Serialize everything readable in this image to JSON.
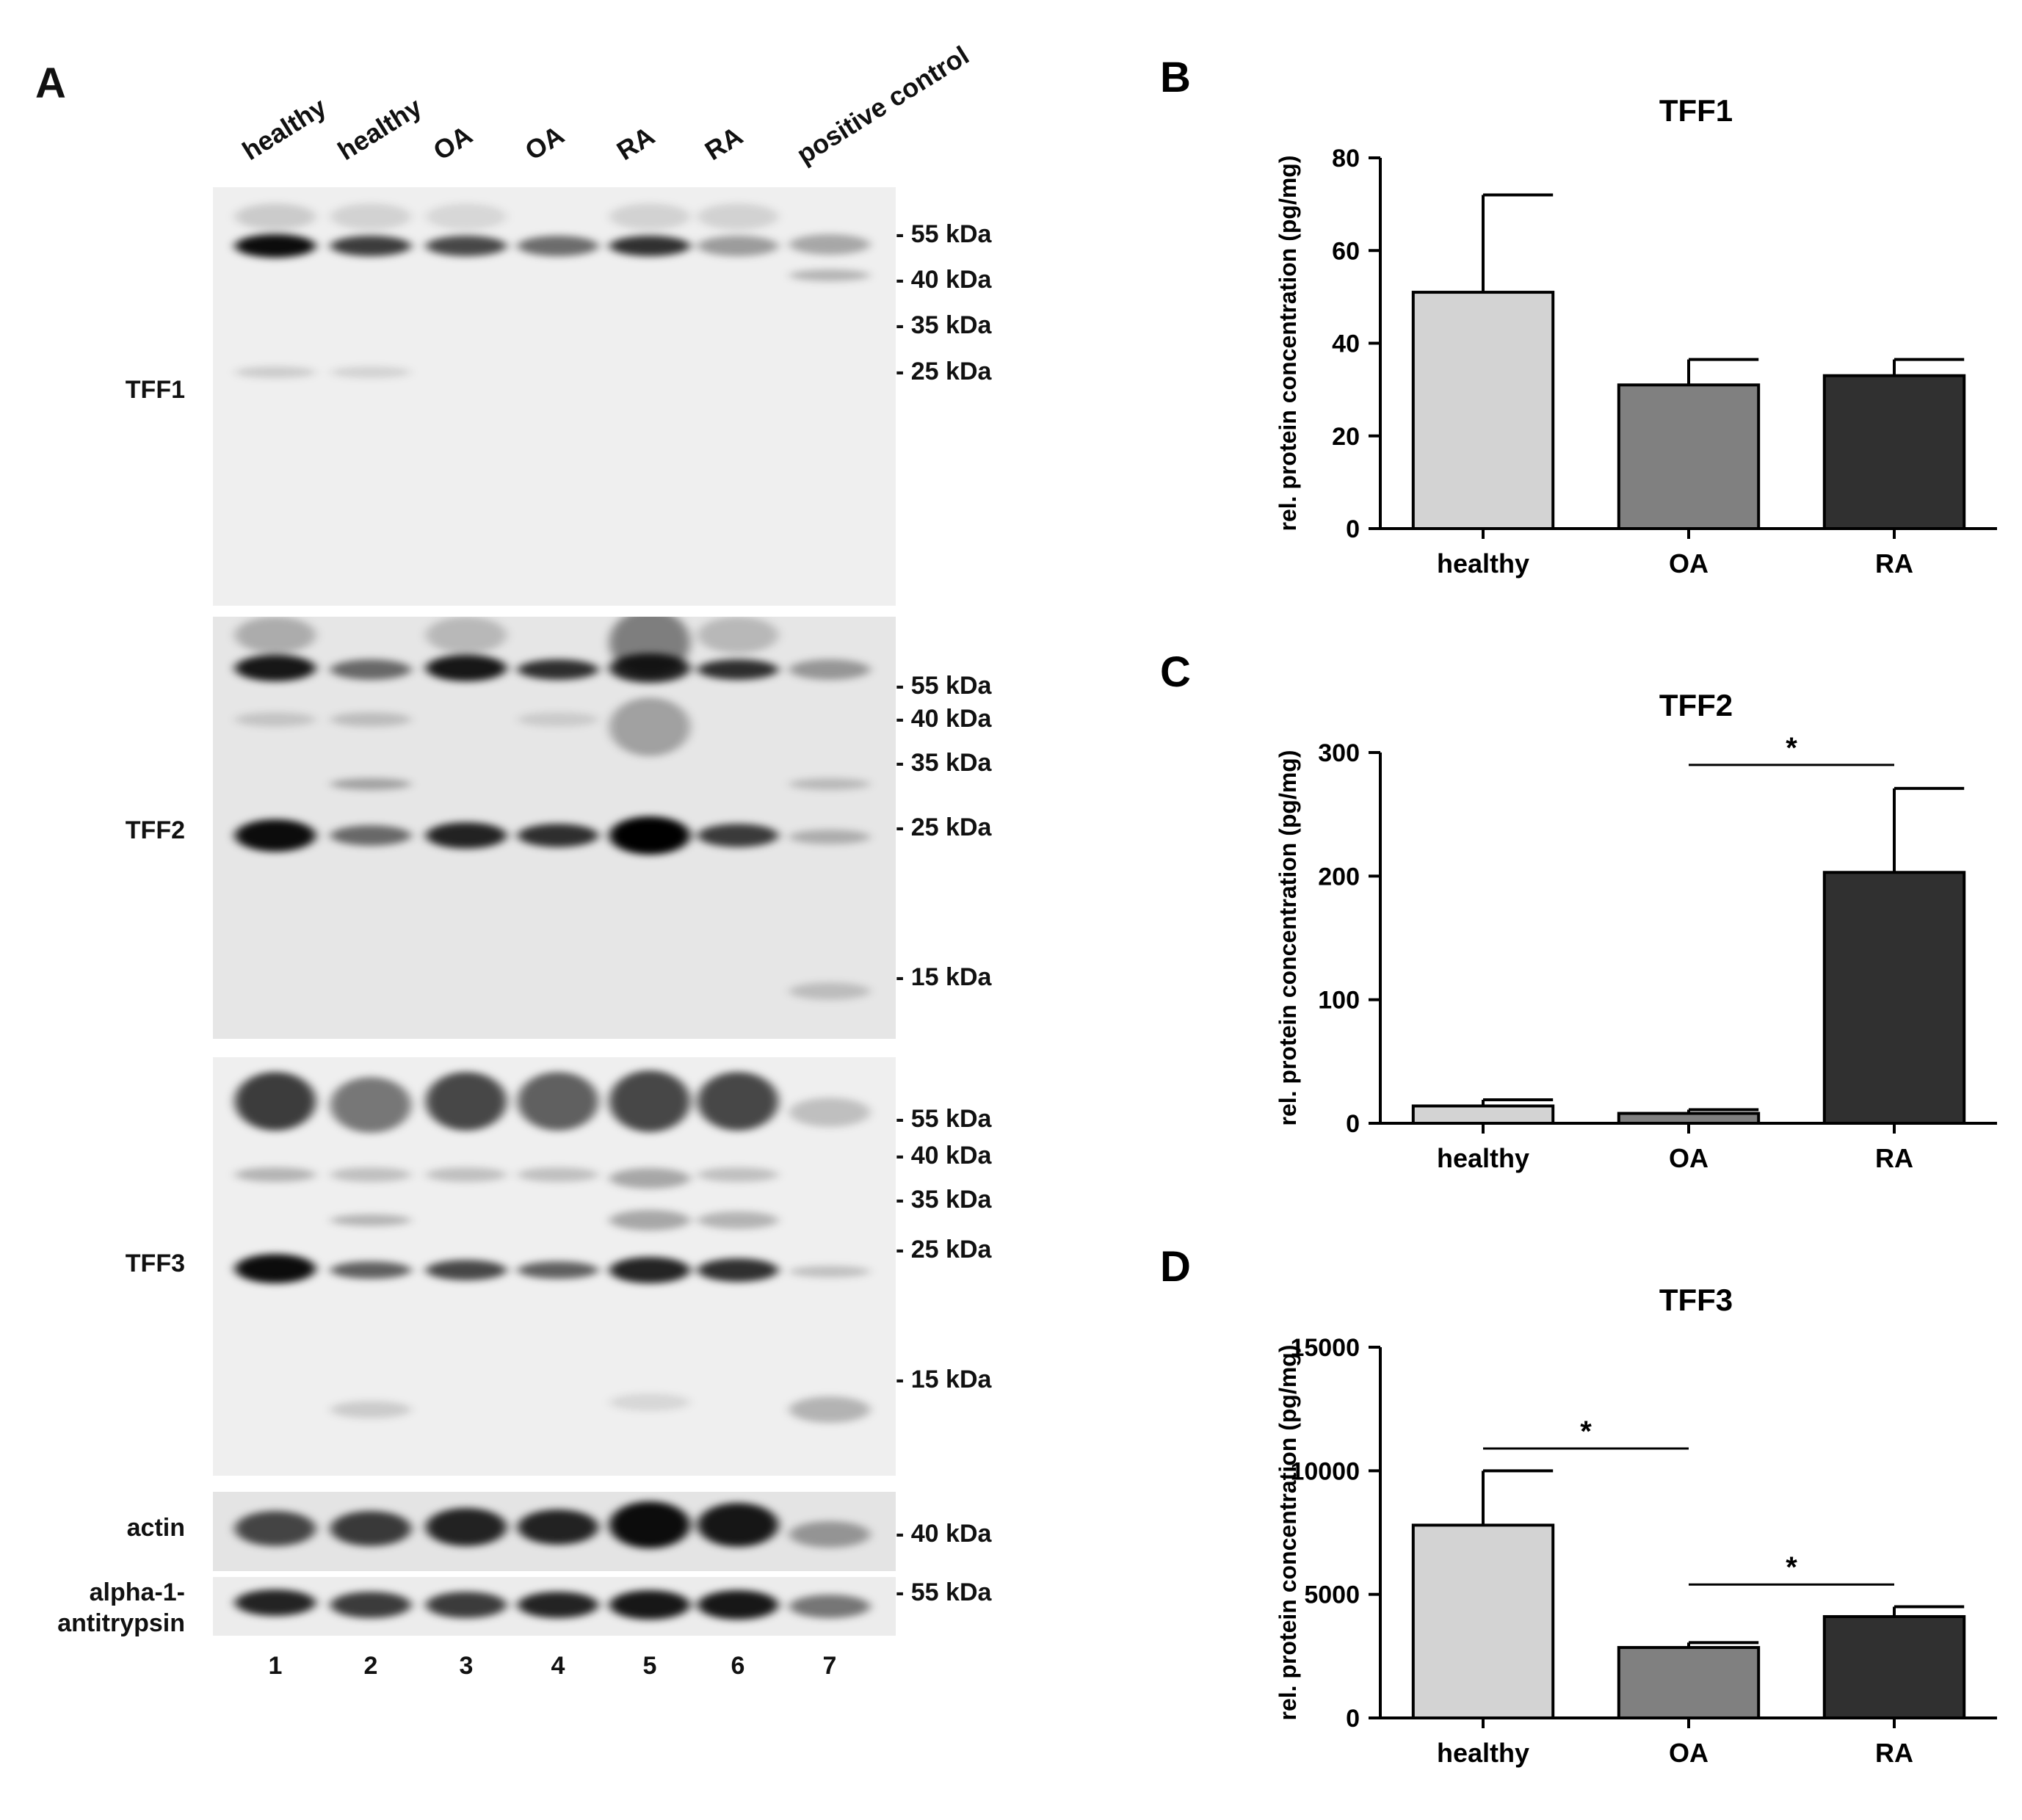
{
  "panel_a": {
    "letter": "A",
    "lanes": [
      {
        "label": "healthy",
        "number": "1"
      },
      {
        "label": "healthy",
        "number": "2"
      },
      {
        "label": "OA",
        "number": "3"
      },
      {
        "label": "OA",
        "number": "4"
      },
      {
        "label": "RA",
        "number": "5"
      },
      {
        "label": "RA",
        "number": "6"
      },
      {
        "label": "positive control",
        "number": "7"
      }
    ],
    "blots": [
      {
        "label": "TFF1",
        "markers": [
          "- 55 kDa",
          "- 40 kDa",
          "- 35 kDa",
          "- 25 kDa"
        ]
      },
      {
        "label": "TFF2",
        "markers": [
          "- 55 kDa",
          "- 40 kDa",
          "- 35 kDa",
          "- 25 kDa",
          "- 15 kDa"
        ]
      },
      {
        "label": "TFF3",
        "markers": [
          "- 55 kDa",
          "- 40 kDa",
          "- 35 kDa",
          "- 25 kDa",
          "- 15 kDa"
        ]
      },
      {
        "label": "actin",
        "markers": [
          "- 40 kDa"
        ]
      },
      {
        "label": "alpha-1-\nantitrypsin",
        "markers": [
          "- 55 kDa"
        ]
      }
    ]
  },
  "chart_data": [
    {
      "panel": "B",
      "type": "bar",
      "title": "TFF1",
      "ylabel": "rel. protein concentration (pg/mg)",
      "categories": [
        "healthy",
        "OA",
        "RA"
      ],
      "values": [
        51,
        31,
        33
      ],
      "errors": [
        21,
        5.5,
        3.5
      ],
      "ylim": [
        0,
        80
      ],
      "yticks": [
        "0",
        "20",
        "40",
        "60",
        "80"
      ],
      "bar_colors": [
        "#d3d3d3",
        "#808080",
        "#303030"
      ],
      "significance": []
    },
    {
      "panel": "C",
      "type": "bar",
      "title": "TFF2",
      "ylabel": "rel. protein concentration (pg/mg)",
      "categories": [
        "healthy",
        "OA",
        "RA"
      ],
      "values": [
        14,
        8,
        203
      ],
      "errors": [
        5,
        3,
        68
      ],
      "ylim": [
        0,
        300
      ],
      "yticks": [
        "0",
        "100",
        "200",
        "300"
      ],
      "bar_colors": [
        "#d3d3d3",
        "#808080",
        "#303030"
      ],
      "significance": [
        {
          "from": 1,
          "to": 2,
          "level": 290,
          "label": "*"
        }
      ]
    },
    {
      "panel": "D",
      "type": "bar",
      "title": "TFF3",
      "ylabel": "rel. protein concentration (pg/mg)",
      "categories": [
        "healthy",
        "OA",
        "RA"
      ],
      "values": [
        7800,
        2850,
        4100
      ],
      "errors": [
        2200,
        200,
        400
      ],
      "ylim": [
        0,
        15000
      ],
      "yticks": [
        "0",
        "5000",
        "10000",
        "15000"
      ],
      "bar_colors": [
        "#d3d3d3",
        "#808080",
        "#303030"
      ],
      "significance": [
        {
          "from": 0,
          "to": 1,
          "level": 10900,
          "label": "*"
        },
        {
          "from": 1,
          "to": 2,
          "level": 5400,
          "label": "*"
        }
      ]
    }
  ]
}
